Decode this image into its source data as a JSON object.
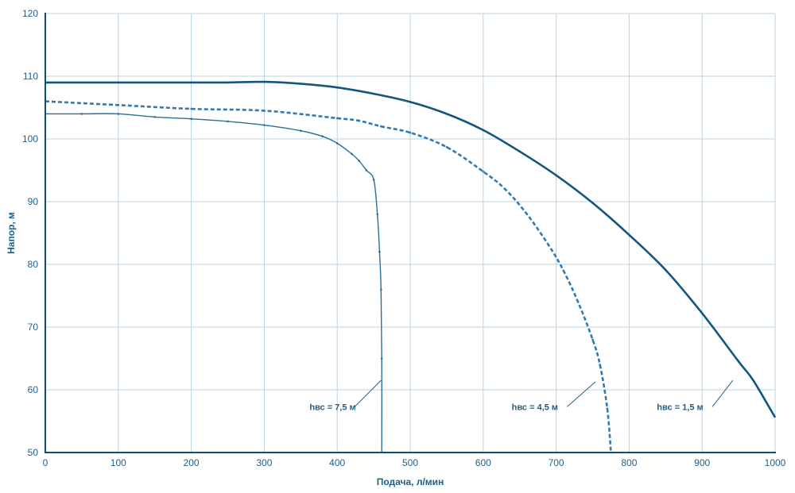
{
  "chart_data": {
    "type": "line",
    "title": "",
    "xlabel": "Подача, л/мин",
    "ylabel": "Напор, м",
    "xlim": [
      0,
      1000
    ],
    "ylim": [
      50,
      120
    ],
    "xticks": [
      0,
      100,
      200,
      300,
      400,
      500,
      600,
      700,
      800,
      900,
      1000
    ],
    "yticks": [
      50,
      60,
      70,
      80,
      90,
      100,
      110,
      120
    ],
    "grid": true,
    "series": [
      {
        "name": "hвс = 1,5  м",
        "style": "solid-thick",
        "color": "#12567f",
        "x": [
          0,
          100,
          200,
          250,
          300,
          350,
          400,
          450,
          500,
          550,
          600,
          650,
          700,
          750,
          800,
          850,
          900,
          950,
          970,
          1000
        ],
        "y": [
          109,
          109,
          109,
          109,
          109.1,
          108.8,
          108.2,
          107.2,
          105.9,
          104,
          101.4,
          98,
          94.2,
          89.8,
          84.7,
          79.1,
          72.2,
          64.5,
          61.5,
          55.6
        ]
      },
      {
        "name": "hвс = 4,5  м",
        "style": "dashed",
        "color": "#2f7ab5",
        "x": [
          0,
          100,
          200,
          300,
          400,
          430,
          460,
          500,
          550,
          600,
          630,
          660,
          690,
          710,
          730,
          750,
          760,
          770,
          775
        ],
        "y": [
          106,
          105.4,
          104.8,
          104.5,
          103.3,
          102.9,
          102,
          101,
          98.7,
          94.8,
          92,
          88,
          83,
          79,
          74,
          68,
          64,
          57,
          50
        ]
      },
      {
        "name": "hвс = 7,5  м",
        "style": "solid-thin",
        "color": "#2a6f96",
        "x": [
          0,
          50,
          100,
          150,
          200,
          250,
          300,
          350,
          380,
          400,
          420,
          430,
          440,
          450,
          455,
          458,
          460,
          461,
          461
        ],
        "y": [
          104,
          104,
          104,
          103.5,
          103.2,
          102.8,
          102.2,
          101.3,
          100.4,
          99.3,
          97.6,
          96.5,
          95,
          93.5,
          88,
          82,
          76,
          65,
          50
        ]
      }
    ],
    "annotations": [
      {
        "text": "hвс = 7,5  м",
        "x": 362,
        "y": 56.8,
        "lx": 424,
        "ly": 57.3,
        "tx": 460,
        "ty": 61.5
      },
      {
        "text": "hвс = 4,5  м",
        "x": 639,
        "y": 56.8,
        "lx": 715,
        "ly": 57.3,
        "tx": 754,
        "ty": 61.3
      },
      {
        "text": "hвс = 1,5  м",
        "x": 838,
        "y": 56.8,
        "lx": 914,
        "ly": 57.3,
        "tx": 942,
        "ty": 61.5
      }
    ]
  }
}
